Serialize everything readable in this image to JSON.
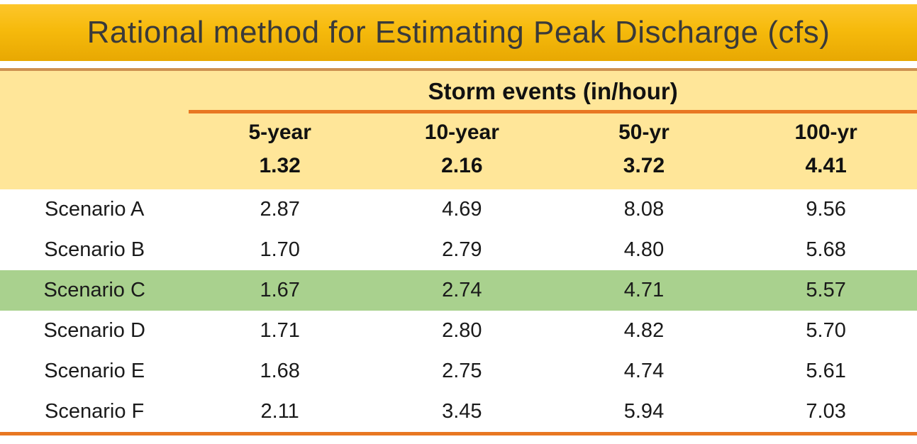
{
  "slide": {
    "title": "Rational method for Estimating Peak Discharge (cfs)"
  },
  "table": {
    "group_header": "Storm events (in/hour)",
    "columns": [
      "5-year",
      "10-year",
      "50-yr",
      "100-yr"
    ],
    "intensities": [
      "1.32",
      "2.16",
      "3.72",
      "4.41"
    ],
    "rows": [
      {
        "label": "Scenario A",
        "values": [
          "2.87",
          "4.69",
          "8.08",
          "9.56"
        ],
        "highlight": false
      },
      {
        "label": "Scenario B",
        "values": [
          "1.70",
          "2.79",
          "4.80",
          "5.68"
        ],
        "highlight": false
      },
      {
        "label": "Scenario C",
        "values": [
          "1.67",
          "2.74",
          "4.71",
          "5.57"
        ],
        "highlight": true
      },
      {
        "label": "Scenario D",
        "values": [
          "1.71",
          "2.80",
          "4.82",
          "5.70"
        ],
        "highlight": false
      },
      {
        "label": "Scenario E",
        "values": [
          "1.68",
          "2.75",
          "4.74",
          "5.61"
        ],
        "highlight": false
      },
      {
        "label": "Scenario F",
        "values": [
          "2.11",
          "3.45",
          "5.94",
          "7.03"
        ],
        "highlight": false
      }
    ]
  },
  "chart_data": {
    "type": "table",
    "title": "Rational method for Estimating Peak Discharge (cfs)",
    "column_group_label": "Storm events (in/hour)",
    "columns": [
      "5-year",
      "10-year",
      "50-yr",
      "100-yr"
    ],
    "storm_intensities_in_per_hour": [
      1.32,
      2.16,
      3.72,
      4.41
    ],
    "rows": [
      {
        "scenario": "Scenario A",
        "peak_discharge_cfs": [
          2.87,
          4.69,
          8.08,
          9.56
        ]
      },
      {
        "scenario": "Scenario B",
        "peak_discharge_cfs": [
          1.7,
          2.79,
          4.8,
          5.68
        ]
      },
      {
        "scenario": "Scenario C",
        "peak_discharge_cfs": [
          1.67,
          2.74,
          4.71,
          5.57
        ]
      },
      {
        "scenario": "Scenario D",
        "peak_discharge_cfs": [
          1.71,
          2.8,
          4.82,
          5.7
        ]
      },
      {
        "scenario": "Scenario E",
        "peak_discharge_cfs": [
          1.68,
          2.75,
          4.74,
          5.61
        ]
      },
      {
        "scenario": "Scenario F",
        "peak_discharge_cfs": [
          2.11,
          3.45,
          5.94,
          7.03
        ]
      }
    ],
    "highlighted_row": "Scenario C",
    "legend_position": "none",
    "grid": false
  },
  "colors": {
    "banner_gold_top": "#FDC62B",
    "banner_gold_bottom": "#E8A802",
    "title_text": "#3A3A3A",
    "header_cream": "#FFE699",
    "accent_orange": "#E87722",
    "table_top_border": "#CE9150",
    "highlight_green": "#A9D18E",
    "body_text": "#1A1A1A"
  }
}
